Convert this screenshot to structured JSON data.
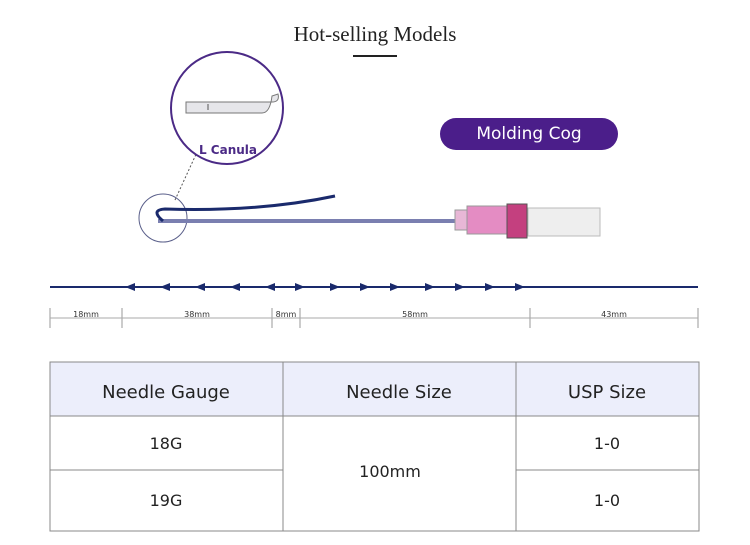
{
  "header": {
    "title": "Hot-selling Models"
  },
  "diagram": {
    "tip_label": "L Canula",
    "badge": "Molding Cog",
    "dimensions": [
      "18mm",
      "38mm",
      "8mm",
      "58mm",
      "43mm"
    ]
  },
  "table": {
    "columns": [
      "Needle Gauge",
      "Needle Size",
      "USP Size"
    ],
    "needle_size": "100mm",
    "rows": [
      {
        "gauge": "18G",
        "usp": "1-0"
      },
      {
        "gauge": "19G",
        "usp": "1-0"
      }
    ]
  }
}
